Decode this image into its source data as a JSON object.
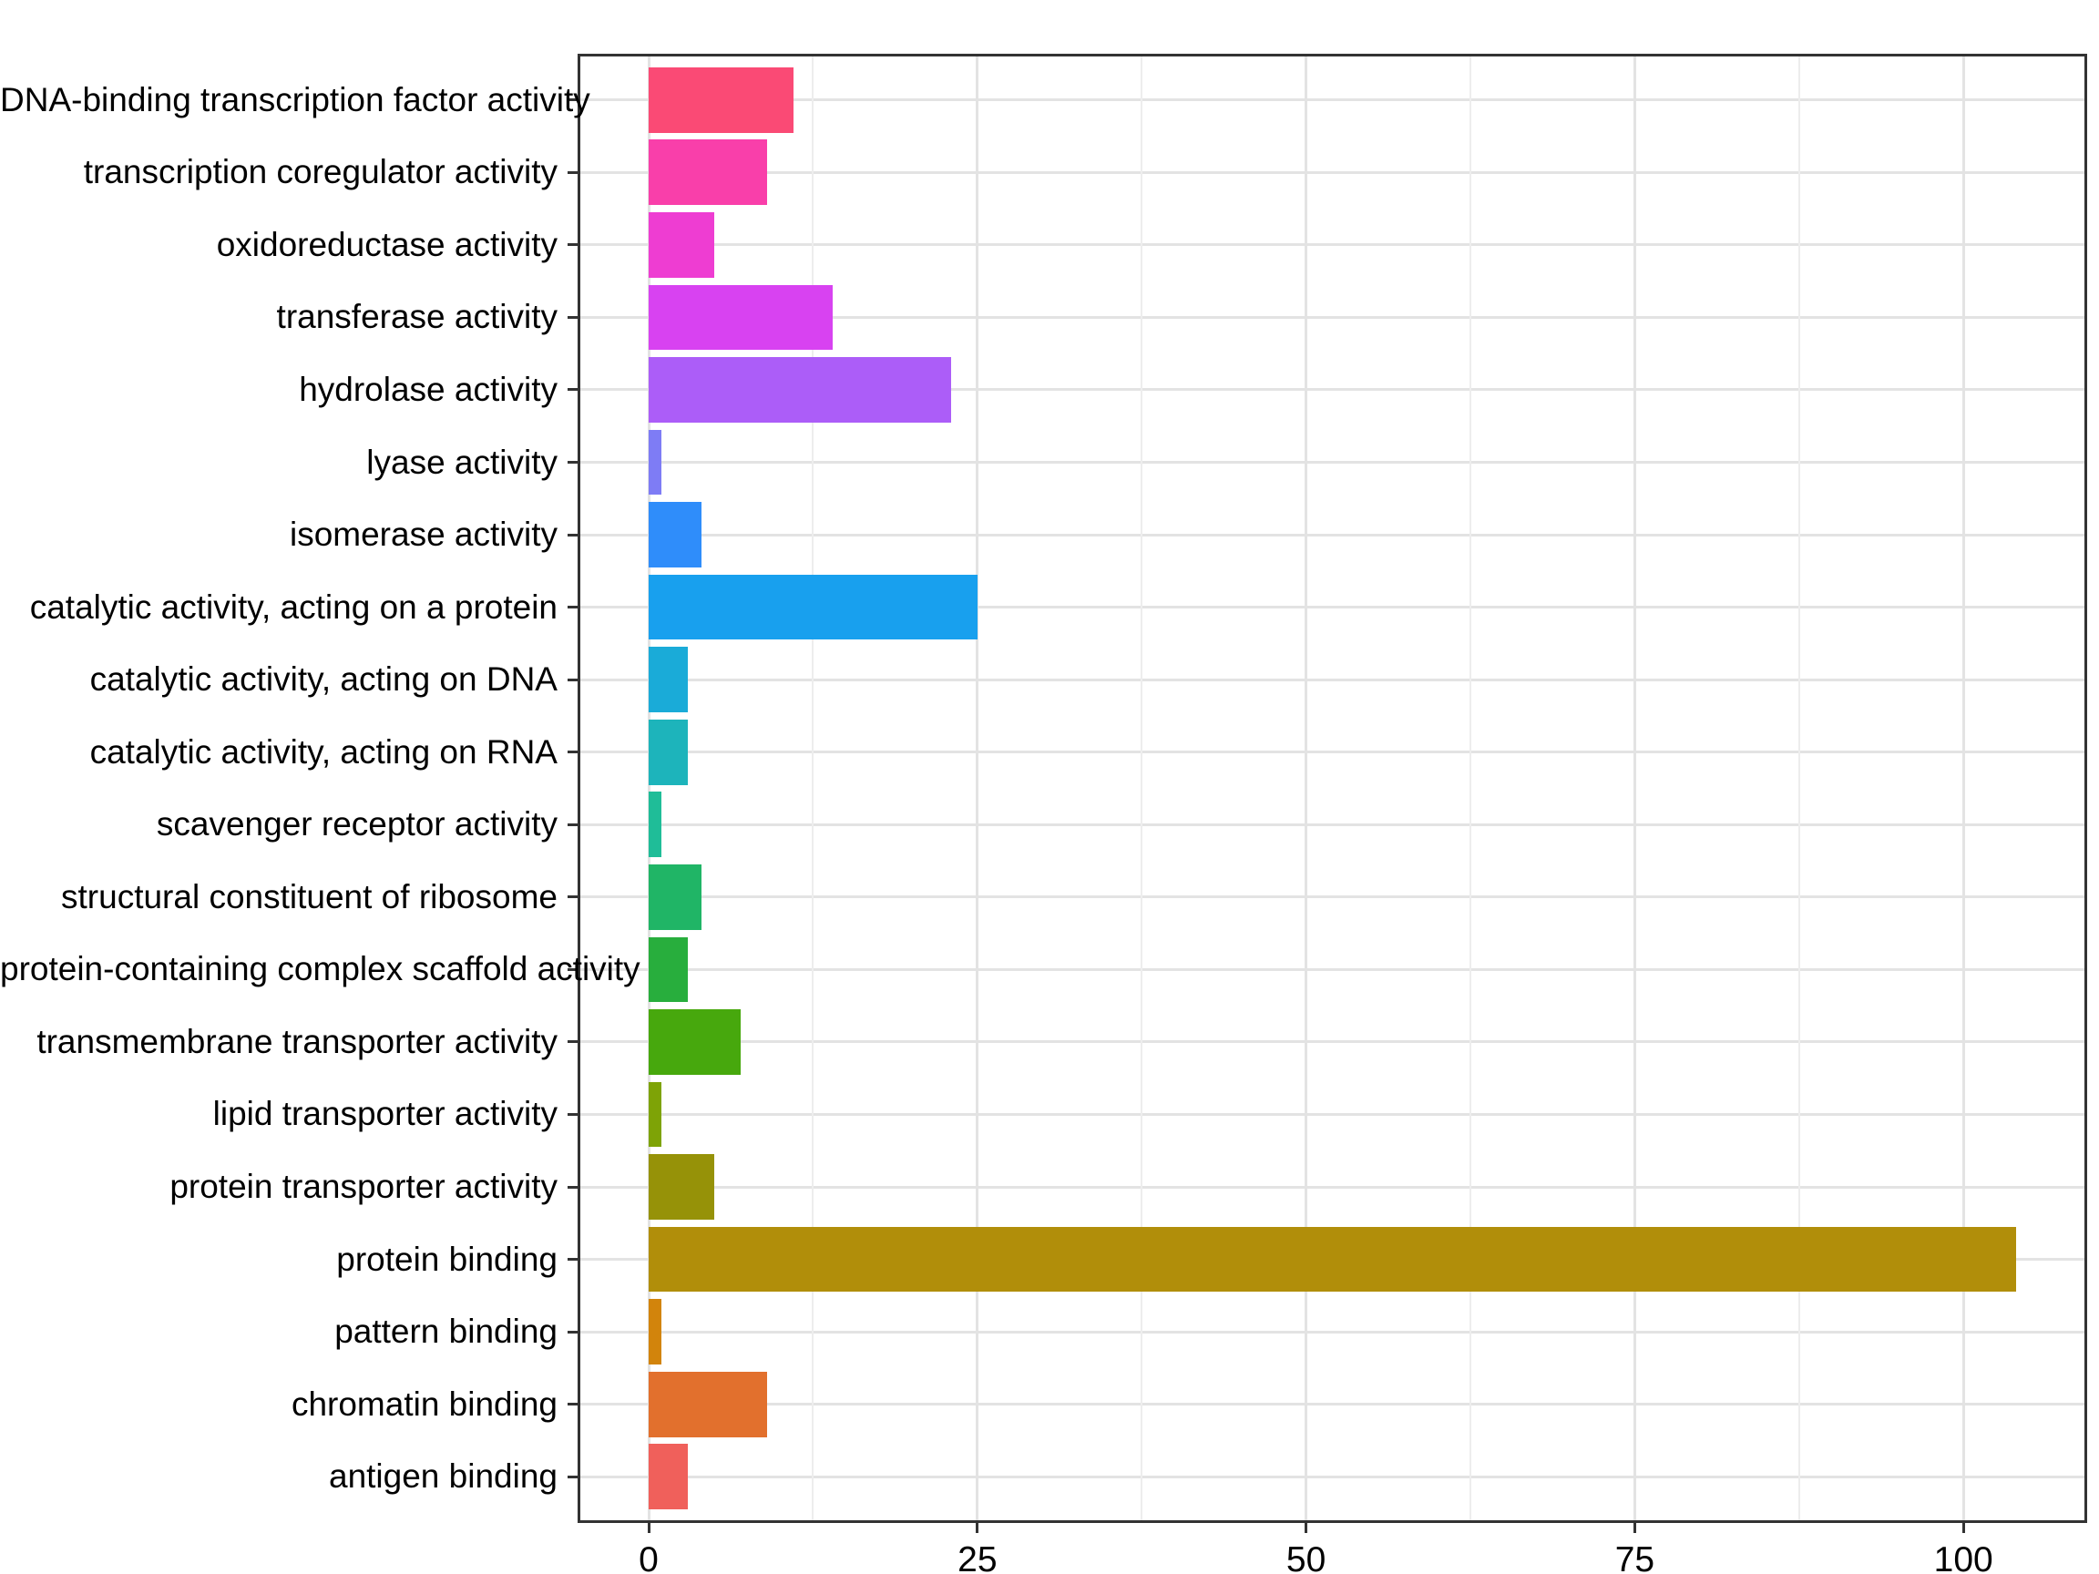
{
  "chart_data": {
    "type": "bar",
    "orientation": "horizontal",
    "title": "",
    "xlabel": "",
    "ylabel": "",
    "legend_position": "none",
    "grid": {
      "vertical_major": true,
      "vertical_minor": true,
      "horizontal_major": true
    },
    "categories": [
      "DNA-binding transcription factor activity",
      "transcription coregulator activity",
      "oxidoreductase activity",
      "transferase activity",
      "hydrolase activity",
      "lyase activity",
      "isomerase activity",
      "catalytic activity, acting on a protein",
      "catalytic activity, acting on DNA",
      "catalytic activity, acting on RNA",
      "scavenger receptor activity",
      "structural constituent of ribosome",
      "protein-containing complex scaffold activity",
      "transmembrane transporter activity",
      "lipid transporter activity",
      "protein transporter activity",
      "protein binding",
      "pattern binding",
      "chromatin binding",
      "antigen binding"
    ],
    "values": [
      11,
      9,
      5,
      14,
      23,
      1,
      4,
      25,
      3,
      3,
      1,
      4,
      3,
      7,
      1,
      5,
      104,
      1,
      9,
      3
    ],
    "bar_colors": [
      "#FA4A75",
      "#F93FAA",
      "#EE3DD2",
      "#D842F1",
      "#AC5DF8",
      "#7E7CF5",
      "#2F8DFA",
      "#18A0EE",
      "#1AABD8",
      "#1DB4BB",
      "#1FBD98",
      "#20B566",
      "#28AE3D",
      "#47A80D",
      "#7EA306",
      "#969208",
      "#B18E0A",
      "#D2840C",
      "#E2702D",
      "#F0605B"
    ],
    "x_axis": {
      "range": [
        -5.2,
        109.2
      ],
      "ticks": [
        0,
        25,
        50,
        75,
        100
      ],
      "tick_labels": [
        "0",
        "25",
        "50",
        "75",
        "100"
      ],
      "minor_ticks": [
        12.5,
        37.5,
        62.5,
        87.5
      ]
    },
    "colors": {
      "background": "#FFFFFF",
      "panel_border": "#333333",
      "axis_tick": "#333333",
      "axis_text": "#000000",
      "grid_major": "#E3E3E3",
      "grid_minor": "#EDEDED"
    }
  }
}
